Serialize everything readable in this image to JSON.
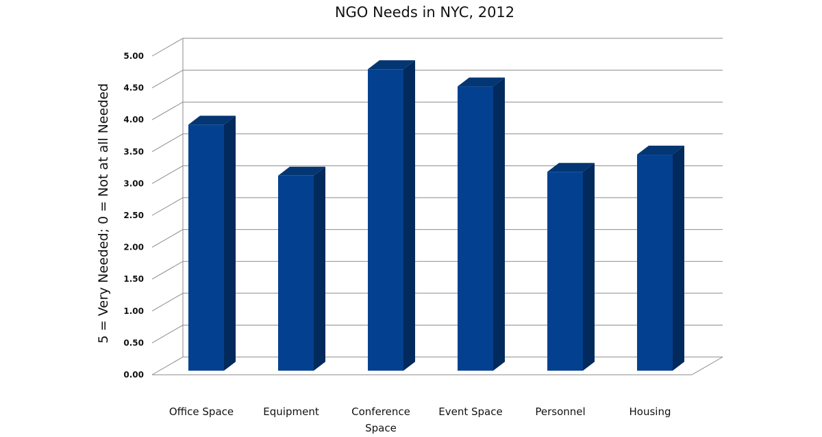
{
  "chart_data": {
    "type": "bar",
    "title": "NGO Needs in NYC, 2012",
    "xlabel": "",
    "ylabel": "5 = Very Needed; 0 = Not at all Needed",
    "categories": [
      "Office Space",
      "Equipment",
      "Conference Space",
      "Event Space",
      "Personnel",
      "Housing"
    ],
    "category_lines": [
      [
        "Office Space"
      ],
      [
        "Equipment"
      ],
      [
        "Conference",
        "Space"
      ],
      [
        "Event Space"
      ],
      [
        "Personnel"
      ],
      [
        "Housing"
      ]
    ],
    "values": [
      3.86,
      3.06,
      4.73,
      4.46,
      3.12,
      3.39
    ],
    "ylim": [
      0,
      5
    ],
    "yticks": [
      "0.00",
      "0.50",
      "1.00",
      "1.50",
      "2.00",
      "2.50",
      "3.00",
      "3.50",
      "4.00",
      "4.50",
      "5.00"
    ],
    "grid": true,
    "legend": "none",
    "style": "3d-column"
  },
  "colors": {
    "bar_front": "#034190",
    "bar_side": "#022a5c",
    "bar_top": "#033672"
  }
}
